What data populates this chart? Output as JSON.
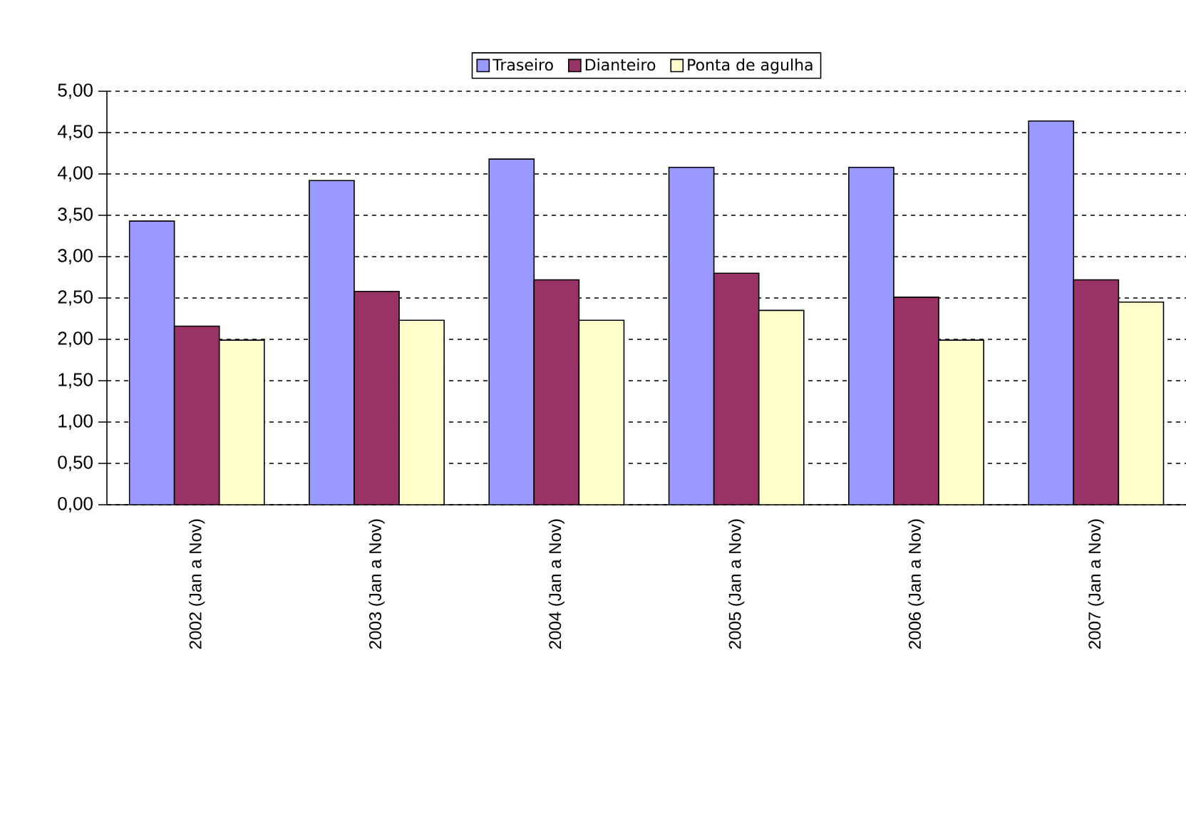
{
  "chart_data": {
    "type": "bar",
    "categories": [
      "2002 (Jan a Nov)",
      "2003  (Jan a Nov)",
      "2004  (Jan a Nov)",
      "2005  (Jan a Nov)",
      "2006  (Jan a Nov)",
      "2007 (Jan a Nov)"
    ],
    "series": [
      {
        "name": "Traseiro",
        "color": "#9999ff",
        "values": [
          3.43,
          3.92,
          4.18,
          4.08,
          4.08,
          4.64
        ]
      },
      {
        "name": "Dianteiro",
        "color": "#993366",
        "values": [
          2.16,
          2.58,
          2.72,
          2.8,
          2.51,
          2.72
        ]
      },
      {
        "name": "Ponta de agulha",
        "color": "#ffffcc",
        "values": [
          1.99,
          2.23,
          2.23,
          2.35,
          1.99,
          2.45
        ]
      }
    ],
    "ylim": [
      0,
      5
    ],
    "yticks": [
      {
        "value": 0,
        "label": "0,00"
      },
      {
        "value": 0.5,
        "label": "0,50"
      },
      {
        "value": 1,
        "label": "1,00"
      },
      {
        "value": 1.5,
        "label": "1,50"
      },
      {
        "value": 2,
        "label": "2,00"
      },
      {
        "value": 2.5,
        "label": "2,50"
      },
      {
        "value": 3,
        "label": "3,00"
      },
      {
        "value": 3.5,
        "label": "3,50"
      },
      {
        "value": 4,
        "label": "4,00"
      },
      {
        "value": 4.5,
        "label": "4,50"
      },
      {
        "value": 5,
        "label": "5,00"
      }
    ],
    "grid": "y",
    "legend": "top"
  }
}
